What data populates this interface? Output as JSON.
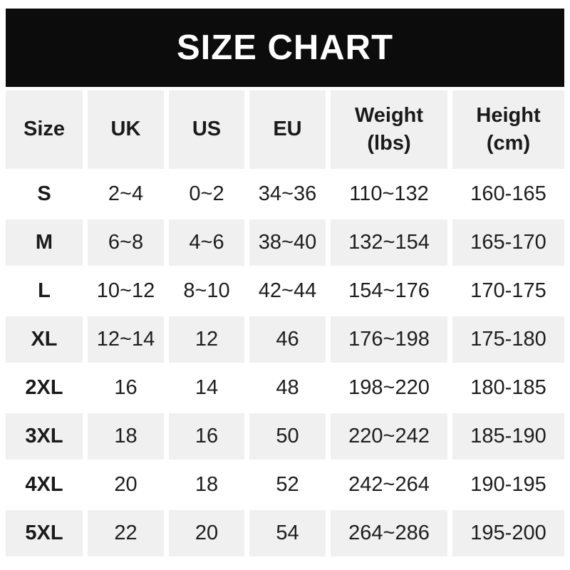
{
  "banner": {
    "title": "SIZE CHART"
  },
  "colors": {
    "banner_bg": "#0c0c0c",
    "banner_text": "#ffffff",
    "shaded_row_bg": "#f0f0f0",
    "row_bg": "#ffffff",
    "text": "#1d1d1d",
    "page_bg": "#ffffff"
  },
  "chart_data": {
    "type": "table",
    "title": "SIZE CHART",
    "columns": [
      "Size",
      "UK",
      "US",
      "EU",
      "Weight (lbs)",
      "Height (cm)"
    ],
    "rows": [
      [
        "S",
        "2~4",
        "0~2",
        "34~36",
        "110~132",
        "160-165"
      ],
      [
        "M",
        "6~8",
        "4~6",
        "38~40",
        "132~154",
        "165-170"
      ],
      [
        "L",
        "10~12",
        "8~10",
        "42~44",
        "154~176",
        "170-175"
      ],
      [
        "XL",
        "12~14",
        "12",
        "46",
        "176~198",
        "175-180"
      ],
      [
        "2XL",
        "16",
        "14",
        "48",
        "198~220",
        "180-185"
      ],
      [
        "3XL",
        "18",
        "16",
        "50",
        "220~242",
        "185-190"
      ],
      [
        "4XL",
        "20",
        "18",
        "52",
        "242~264",
        "190-195"
      ],
      [
        "5XL",
        "22",
        "20",
        "54",
        "264~286",
        "195-200"
      ]
    ],
    "layout": {
      "shaded_rows": [
        "header",
        "M",
        "XL",
        "3XL",
        "5XL"
      ],
      "grid": "off",
      "header_position": "top"
    }
  }
}
